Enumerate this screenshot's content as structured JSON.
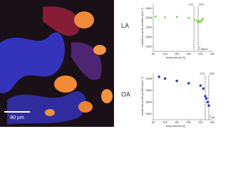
{
  "image": {
    "scale_bar": "80 µm"
  },
  "chart_data": [
    {
      "type": "scatter",
      "label": "LA",
      "ylabel": "maximum peak position [cm⁻¹]",
      "xlabel": "temperature [K]",
      "x": [
        60,
        100,
        150,
        200,
        225,
        235,
        240,
        245,
        250,
        255,
        260
      ],
      "values": [
        1658.3,
        1658.1,
        1658.2,
        1658.0,
        1657.6,
        1657.4,
        1657.0,
        1657.3,
        1657.2,
        1657.5,
        1657.8
      ],
      "color": "#7bd24a",
      "marker": "circle",
      "xlim": [
        50,
        300
      ],
      "xticks": [
        50,
        100,
        150,
        200,
        250,
        300
      ],
      "ylim": [
        1651,
        1661
      ],
      "yticks": [
        1652,
        1654,
        1656,
        1658,
        1660
      ],
      "vlines": [
        222,
        240
      ],
      "note": "liquid"
    },
    {
      "type": "scatter",
      "label": "OA",
      "ylabel": "maximum peak position [cm⁻¹]",
      "xlabel": "temperature [K]",
      "x": [
        75,
        100,
        150,
        200,
        250,
        262,
        270,
        275,
        280,
        285
      ],
      "values": [
        1658.3,
        1658.0,
        1657.6,
        1657.2,
        1656.8,
        1656.3,
        1655.0,
        1654.6,
        1654.0,
        1653.4
      ],
      "color": "#2e3fb0",
      "marker": "square",
      "xlim": [
        50,
        300
      ],
      "xticks": [
        50,
        100,
        150,
        200,
        250,
        300
      ],
      "ylim": [
        1651,
        1659
      ],
      "yticks": [
        1652,
        1654,
        1656,
        1658
      ],
      "vlines": [
        270,
        285
      ],
      "note": "liquid"
    }
  ]
}
